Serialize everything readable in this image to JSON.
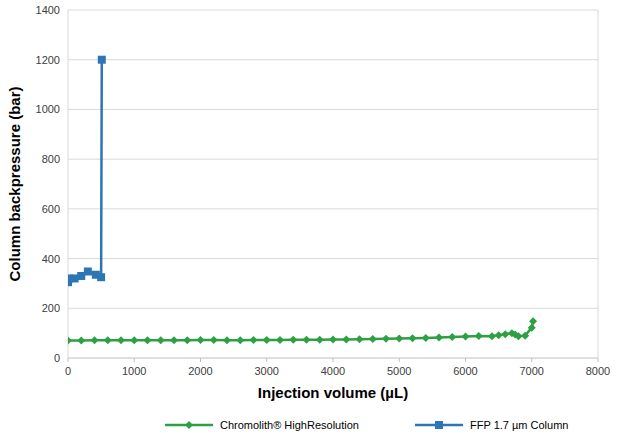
{
  "chart_data": {
    "type": "line",
    "x_label": "Injection volume (µL)",
    "y_label": "Column backpressure (bar)",
    "xlim": [
      0,
      8000
    ],
    "xticks": [
      0,
      1000,
      2000,
      3000,
      4000,
      5000,
      6000,
      7000,
      8000
    ],
    "ylim": [
      0,
      1400
    ],
    "yticks": [
      0,
      200,
      400,
      600,
      800,
      1000,
      1200,
      1400
    ],
    "grid": true,
    "legend": "bottom",
    "series": [
      {
        "name": "Chromolith® HighResolution",
        "color": "#2ea043",
        "marker": "diamond",
        "x": [
          0,
          200,
          400,
          600,
          800,
          1000,
          1200,
          1400,
          1600,
          1800,
          2000,
          2200,
          2400,
          2600,
          2800,
          3000,
          3200,
          3400,
          3600,
          3800,
          4000,
          4200,
          4400,
          4600,
          4800,
          5000,
          5200,
          5400,
          5600,
          5800,
          6000,
          6200,
          6400,
          6500,
          6600,
          6700,
          6750,
          6800,
          6900,
          7000,
          7020
        ],
        "values": [
          70,
          70,
          71,
          71,
          71,
          71,
          71,
          71,
          71,
          71,
          72,
          72,
          71,
          71,
          72,
          72,
          72,
          73,
          73,
          73,
          74,
          74,
          75,
          76,
          77,
          78,
          79,
          80,
          82,
          84,
          86,
          89,
          88,
          92,
          96,
          100,
          95,
          88,
          90,
          122,
          148
        ]
      },
      {
        "name": "FFP 1.7 µm Column",
        "color": "#2e75b6",
        "marker": "square",
        "x": [
          0,
          20,
          100,
          200,
          300,
          420,
          500,
          510
        ],
        "values": [
          305,
          320,
          320,
          330,
          348,
          335,
          325,
          1200
        ]
      }
    ]
  }
}
